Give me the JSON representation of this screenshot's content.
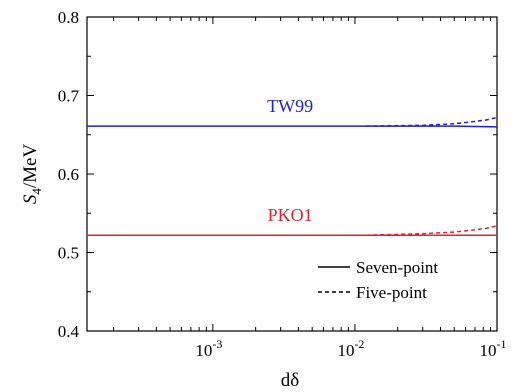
{
  "chart_data": {
    "type": "line",
    "xscale": "log",
    "xlim": [
      0.00013,
      0.1
    ],
    "ylim": [
      0.4,
      0.8
    ],
    "xlabel": "dδ",
    "ylabel": {
      "main": "S",
      "sub": "4",
      "rest": "/MeV"
    },
    "grid": false,
    "legend_position": "bottom-right",
    "xticks": [
      {
        "value": 0.001,
        "label_base": "10",
        "label_exp": "-3"
      },
      {
        "value": 0.01,
        "label_base": "10",
        "label_exp": "-2"
      },
      {
        "value": 0.1,
        "label_base": "10",
        "label_exp": "-1"
      }
    ],
    "yticks": [
      {
        "value": 0.4,
        "label": "0.4"
      },
      {
        "value": 0.5,
        "label": "0.5"
      },
      {
        "value": 0.6,
        "label": "0.6"
      },
      {
        "value": 0.7,
        "label": "0.7"
      },
      {
        "value": 0.8,
        "label": "0.8"
      }
    ],
    "legend": [
      {
        "label": "Seven-point",
        "style": "solid"
      },
      {
        "label": "Five-point",
        "style": "dashed"
      }
    ],
    "annotations": [
      {
        "text": "TW99",
        "color": "#1f1fd6",
        "x": 0.0035,
        "y": 0.679
      },
      {
        "text": "PKO1",
        "color": "#e8202a",
        "x": 0.0035,
        "y": 0.54
      }
    ],
    "series": [
      {
        "group": "TW99",
        "method": "Seven-point",
        "color": "#1f1fd6",
        "style": "solid",
        "x": [
          0.00013,
          0.001,
          0.01,
          0.05,
          0.1
        ],
        "y": [
          0.661,
          0.661,
          0.661,
          0.661,
          0.66
        ]
      },
      {
        "group": "TW99",
        "method": "Five-point",
        "color": "#1f1fd6",
        "style": "dashed",
        "x": [
          0.012,
          0.03,
          0.05,
          0.07,
          0.085,
          0.1
        ],
        "y": [
          0.661,
          0.662,
          0.664,
          0.667,
          0.669,
          0.672
        ]
      },
      {
        "group": "PKO1",
        "method": "Seven-point",
        "color": "#e8202a",
        "style": "solid",
        "x": [
          0.00013,
          0.001,
          0.01,
          0.05,
          0.1
        ],
        "y": [
          0.522,
          0.522,
          0.522,
          0.522,
          0.522
        ]
      },
      {
        "group": "PKO1",
        "method": "Five-point",
        "color": "#e8202a",
        "style": "dashed",
        "x": [
          0.012,
          0.03,
          0.05,
          0.07,
          0.085,
          0.1
        ],
        "y": [
          0.522,
          0.524,
          0.526,
          0.529,
          0.531,
          0.534
        ]
      }
    ]
  }
}
